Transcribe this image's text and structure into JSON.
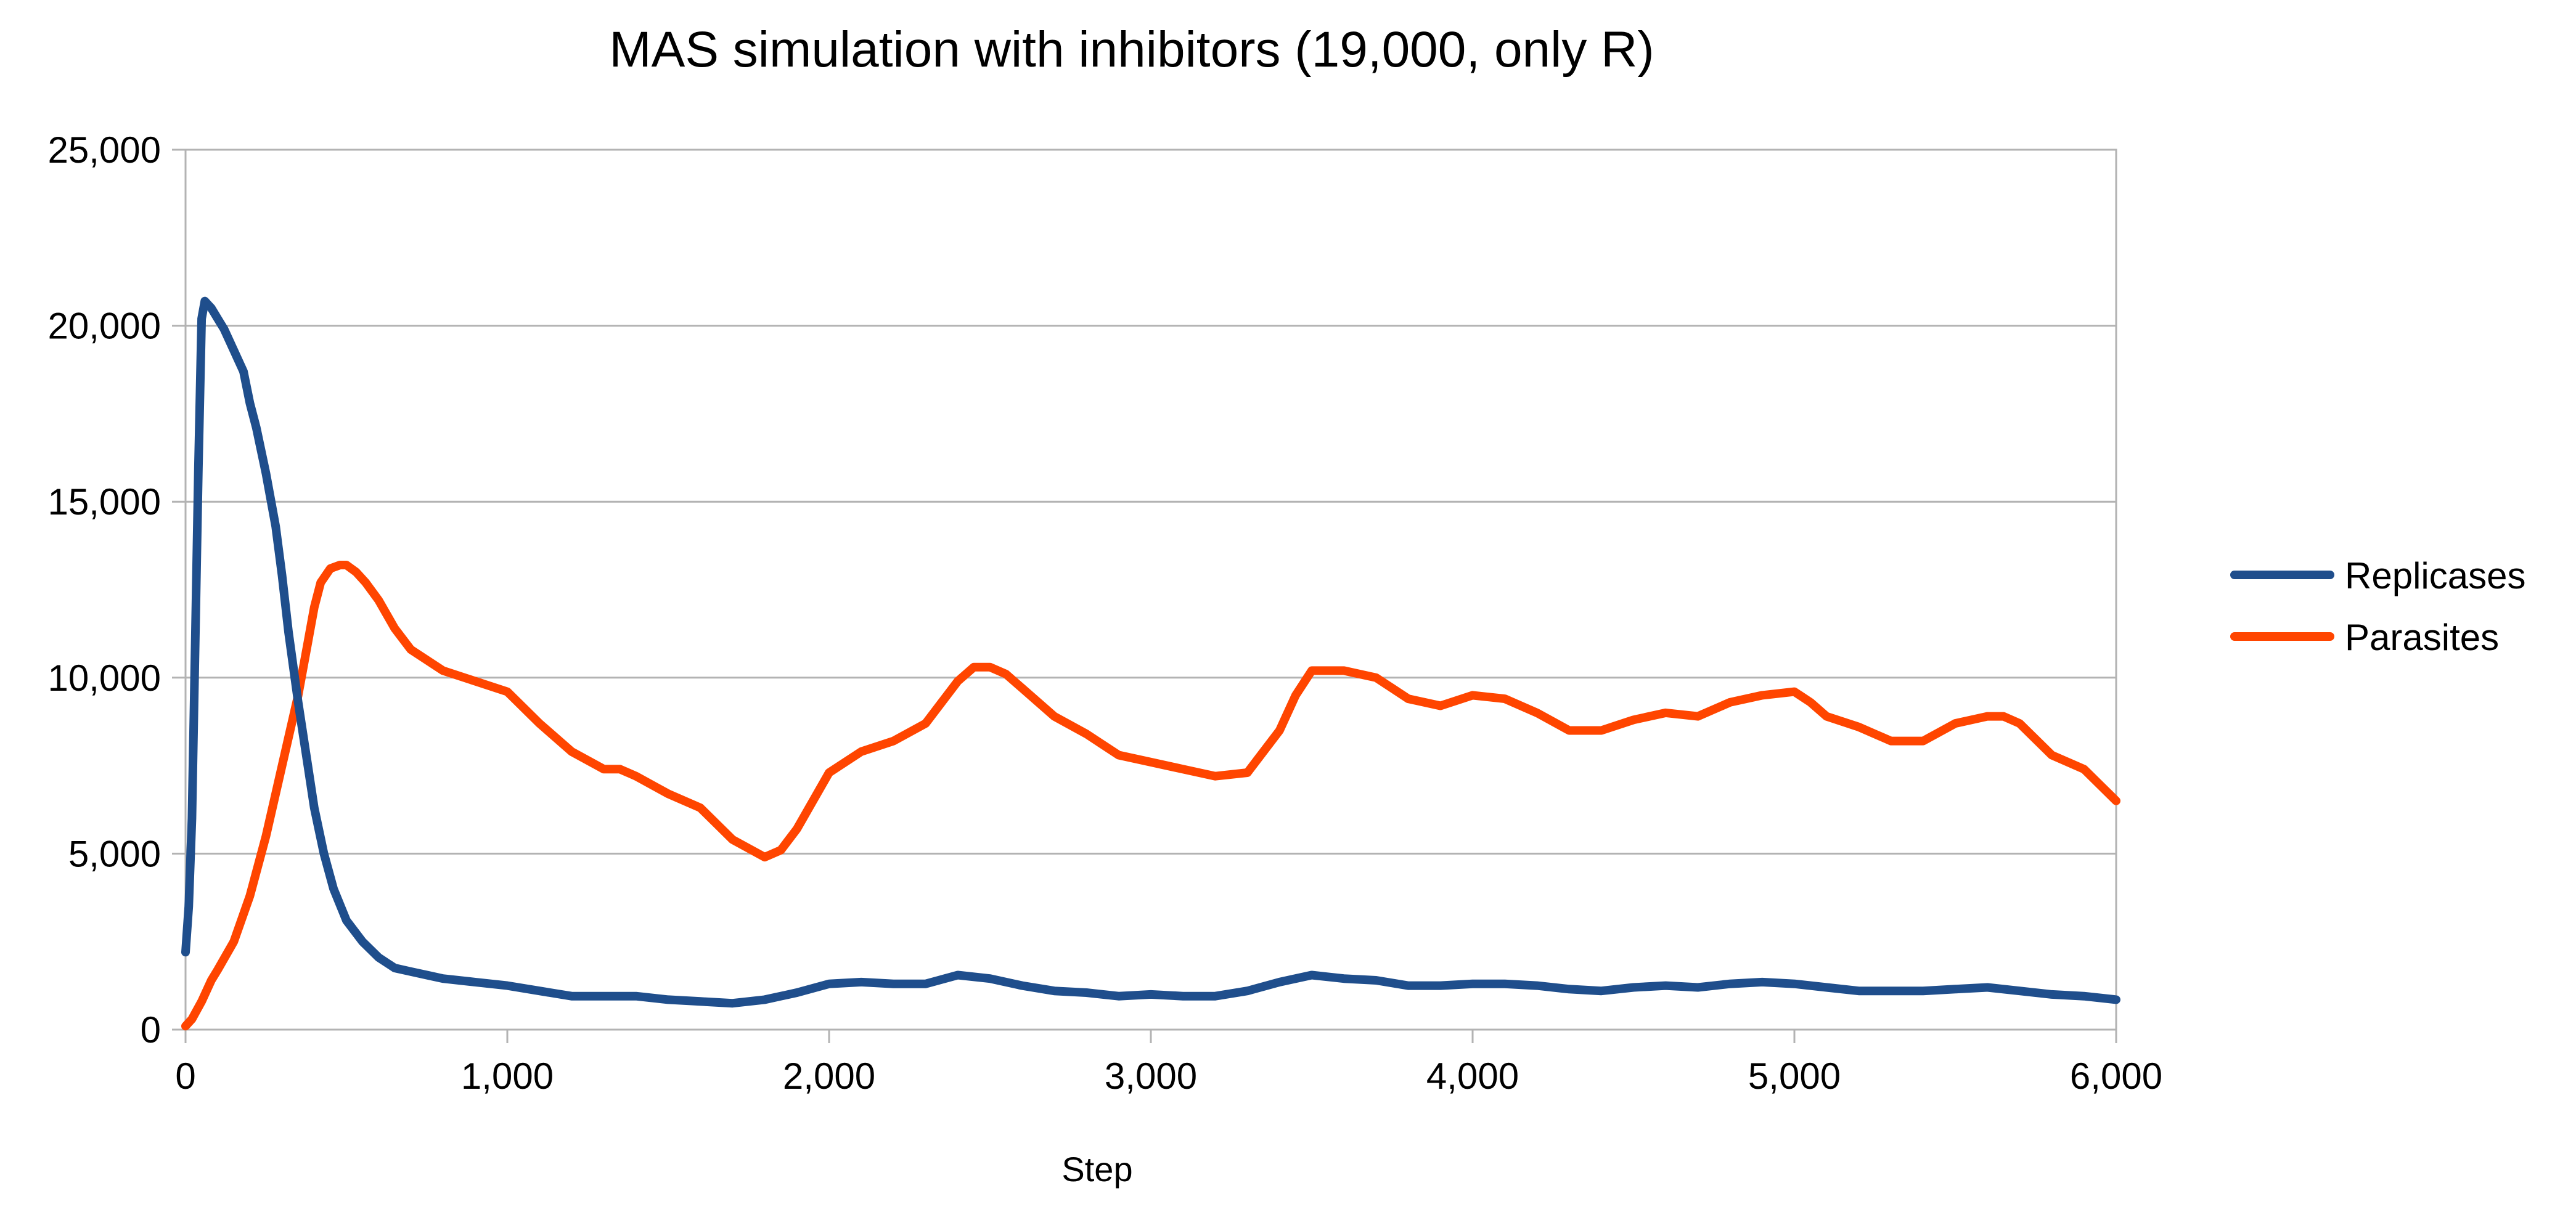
{
  "chart_data": {
    "type": "line",
    "title": "MAS simulation with inhibitors (19,000, only R)",
    "xlabel": "Step",
    "ylabel": "",
    "xlim": [
      0,
      6000
    ],
    "ylim": [
      0,
      25000
    ],
    "x_ticks": [
      0,
      1000,
      2000,
      3000,
      4000,
      5000,
      6000
    ],
    "x_tick_labels": [
      "0",
      "1,000",
      "2,000",
      "3,000",
      "4,000",
      "5,000",
      "6,000"
    ],
    "y_ticks": [
      0,
      5000,
      10000,
      15000,
      20000,
      25000
    ],
    "y_tick_labels": [
      "0",
      "5,000",
      "10,000",
      "15,000",
      "20,000",
      "25,000"
    ],
    "grid": "horizontal",
    "legend_position": "right",
    "series": [
      {
        "name": "Replicases",
        "color": "#1f4e8c",
        "x": [
          0,
          10,
          20,
          30,
          40,
          50,
          60,
          70,
          80,
          100,
          120,
          150,
          180,
          200,
          220,
          250,
          280,
          300,
          320,
          350,
          380,
          400,
          430,
          460,
          500,
          550,
          600,
          650,
          700,
          750,
          800,
          900,
          1000,
          1100,
          1200,
          1300,
          1400,
          1500,
          1600,
          1700,
          1800,
          1900,
          2000,
          2100,
          2200,
          2300,
          2400,
          2500,
          2600,
          2700,
          2800,
          2900,
          3000,
          3100,
          3200,
          3300,
          3400,
          3500,
          3600,
          3700,
          3800,
          3900,
          4000,
          4100,
          4200,
          4300,
          4400,
          4500,
          4600,
          4700,
          4800,
          4900,
          5000,
          5100,
          5200,
          5300,
          5400,
          5500,
          5600,
          5700,
          5800,
          5900,
          6000
        ],
        "values": [
          2200,
          3500,
          6000,
          11000,
          16000,
          20200,
          20700,
          20600,
          20500,
          20200,
          19900,
          19300,
          18700,
          17800,
          17100,
          15800,
          14300,
          12900,
          11300,
          9300,
          7500,
          6300,
          5000,
          4000,
          3100,
          2500,
          2050,
          1750,
          1650,
          1550,
          1450,
          1350,
          1250,
          1100,
          950,
          950,
          950,
          850,
          800,
          750,
          850,
          1050,
          1300,
          1350,
          1300,
          1300,
          1550,
          1450,
          1250,
          1100,
          1050,
          950,
          1000,
          950,
          950,
          1100,
          1350,
          1550,
          1450,
          1400,
          1250,
          1250,
          1300,
          1300,
          1250,
          1150,
          1100,
          1200,
          1250,
          1200,
          1300,
          1350,
          1300,
          1200,
          1100,
          1100,
          1100,
          1150,
          1200,
          1100,
          1000,
          950,
          850
        ]
      },
      {
        "name": "Parasites",
        "color": "#ff4500",
        "x": [
          0,
          20,
          50,
          80,
          100,
          150,
          200,
          250,
          300,
          350,
          380,
          400,
          420,
          450,
          480,
          500,
          530,
          560,
          600,
          650,
          700,
          800,
          900,
          1000,
          1100,
          1200,
          1300,
          1350,
          1400,
          1500,
          1600,
          1700,
          1800,
          1850,
          1900,
          1950,
          2000,
          2100,
          2200,
          2300,
          2400,
          2450,
          2500,
          2550,
          2600,
          2700,
          2800,
          2900,
          3000,
          3100,
          3200,
          3300,
          3400,
          3450,
          3500,
          3600,
          3700,
          3750,
          3800,
          3900,
          4000,
          4100,
          4200,
          4300,
          4400,
          4500,
          4600,
          4700,
          4800,
          4900,
          5000,
          5050,
          5100,
          5200,
          5300,
          5400,
          5500,
          5600,
          5650,
          5700,
          5800,
          5900,
          6000
        ],
        "values": [
          100,
          300,
          800,
          1400,
          1700,
          2500,
          3800,
          5500,
          7500,
          9500,
          11000,
          12000,
          12700,
          13100,
          13200,
          13200,
          13000,
          12700,
          12200,
          11400,
          10800,
          10200,
          9900,
          9600,
          8700,
          7900,
          7400,
          7400,
          7200,
          6700,
          6300,
          5400,
          4900,
          5100,
          5700,
          6500,
          7300,
          7900,
          8200,
          8700,
          9900,
          10300,
          10300,
          10100,
          9700,
          8900,
          8400,
          7800,
          7600,
          7400,
          7200,
          7300,
          8500,
          9500,
          10200,
          10200,
          10000,
          9700,
          9400,
          9200,
          9500,
          9400,
          9000,
          8500,
          8500,
          8800,
          9000,
          8900,
          9300,
          9500,
          9600,
          9300,
          8900,
          8600,
          8200,
          8200,
          8700,
          8900,
          8900,
          8700,
          7800,
          7400,
          6500
        ]
      }
    ]
  }
}
